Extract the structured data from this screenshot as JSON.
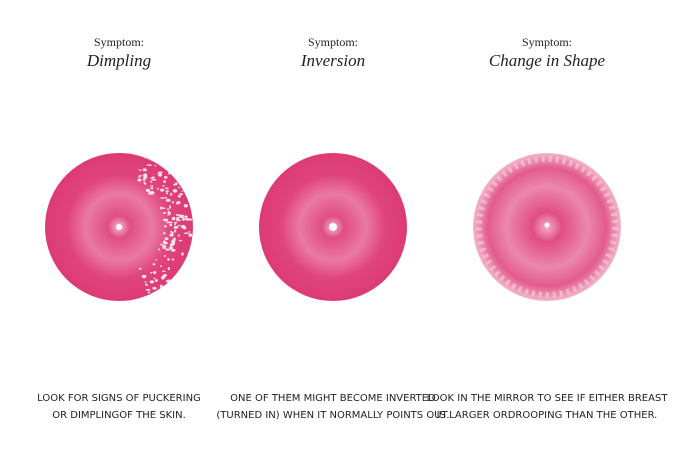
{
  "panels": [
    {
      "label": "Symptom:",
      "title": "Dimpling",
      "description": [
        "LOOK FOR SIGNS OF PUCKERING",
        "OR DIMPLINGOF THE SKIN."
      ]
    },
    {
      "label": "Symptom:",
      "title": "Inversion",
      "description": [
        "ONE OF THEM MIGHT BECOME INVERTED",
        "(TURNED IN) WHEN IT NORMALLY POINTS OUT."
      ]
    },
    {
      "label": "Symptom:",
      "title": "Change in Shape",
      "description": [
        "LOOK IN THE MIRROR TO SEE IF EITHER BREAST",
        "IS LARGER ORDROOPING THAN THE OTHER."
      ]
    }
  ]
}
